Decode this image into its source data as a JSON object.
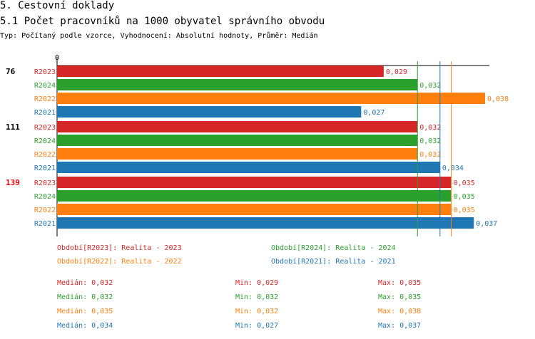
{
  "header": {
    "title": "5. Cestovní doklady",
    "subtitle": "5.1 Počet pracovníků na 1000 obyvatel správního obvodu",
    "type_line": "Typ: Počítaný podle vzorce, Vyhodnocení: Absolutní hodnoty, Průměr: Medián"
  },
  "colors": {
    "R2023": "#d62728",
    "R2024": "#2ca02c",
    "R2022": "#ff7f0e",
    "R2021": "#1f77b4",
    "highlight": "#ff0000"
  },
  "chart_data": {
    "type": "bar",
    "orientation": "horizontal",
    "x_axis_tick": "0",
    "xlim": [
      0,
      0.038
    ],
    "series_order": [
      "R2023",
      "R2024",
      "R2022",
      "R2021"
    ],
    "groups": [
      {
        "label": "76",
        "highlight": false,
        "bars": [
          {
            "series": "R2023",
            "value": 0.029,
            "label": "0,029"
          },
          {
            "series": "R2024",
            "value": 0.032,
            "label": "0,032"
          },
          {
            "series": "R2022",
            "value": 0.038,
            "label": "0,038"
          },
          {
            "series": "R2021",
            "value": 0.027,
            "label": "0,027"
          }
        ]
      },
      {
        "label": "111",
        "highlight": false,
        "bars": [
          {
            "series": "R2023",
            "value": 0.032,
            "label": "0,032"
          },
          {
            "series": "R2024",
            "value": 0.032,
            "label": "0,032"
          },
          {
            "series": "R2022",
            "value": 0.032,
            "label": "0,032"
          },
          {
            "series": "R2021",
            "value": 0.034,
            "label": "0,034"
          }
        ]
      },
      {
        "label": "139",
        "highlight": true,
        "bars": [
          {
            "series": "R2023",
            "value": 0.035,
            "label": "0,035"
          },
          {
            "series": "R2024",
            "value": 0.035,
            "label": "0,035"
          },
          {
            "series": "R2022",
            "value": 0.035,
            "label": "0,035"
          },
          {
            "series": "R2021",
            "value": 0.037,
            "label": "0,037"
          }
        ]
      }
    ],
    "median_lines": [
      {
        "series": "R2024",
        "value": 0.032
      },
      {
        "series": "R2021",
        "value": 0.034
      },
      {
        "series": "R2022",
        "value": 0.035
      }
    ],
    "legend": {
      "R2023": "Období[R2023]: Realita - 2023",
      "R2024": "Období[R2024]: Realita - 2024",
      "R2022": "Období[R2022]: Realita - 2022",
      "R2021": "Období[R2021]: Realita - 2021"
    },
    "stats": [
      {
        "series": "R2023",
        "median": "Medián: 0,032",
        "min": "Min: 0,029",
        "max": "Max: 0,035"
      },
      {
        "series": "R2024",
        "median": "Medián: 0,032",
        "min": "Min: 0,032",
        "max": "Max: 0,035"
      },
      {
        "series": "R2022",
        "median": "Medián: 0,035",
        "min": "Min: 0,032",
        "max": "Max: 0,038"
      },
      {
        "series": "R2021",
        "median": "Medián: 0,034",
        "min": "Min: 0,027",
        "max": "Max: 0,037"
      }
    ]
  }
}
